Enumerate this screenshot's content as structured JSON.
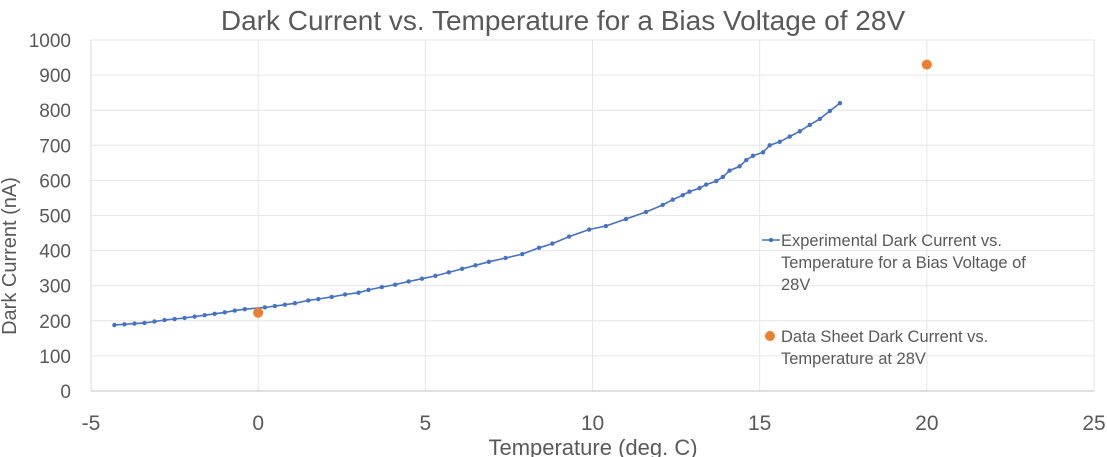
{
  "chart_data": {
    "type": "scatter",
    "title": "Dark Current vs. Temperature for a Bias Voltage of 28V",
    "xlabel": "Temperature (deg. C)",
    "ylabel": "Dark Current (nA)",
    "xlim": [
      -5,
      25
    ],
    "ylim": [
      0,
      1000
    ],
    "x_ticks": [
      "-5",
      "0",
      "5",
      "10",
      "15",
      "20",
      "25"
    ],
    "y_ticks": [
      "0",
      "100",
      "200",
      "300",
      "400",
      "500",
      "600",
      "700",
      "800",
      "900",
      "1000"
    ],
    "grid": true,
    "legend_position": "right",
    "series": [
      {
        "name": "Experimental Dark Current vs. Temperature for a Bias Voltage of 28V",
        "color": "#4472C4",
        "style": "line-with-markers",
        "points": [
          [
            -4.3,
            188
          ],
          [
            -4.0,
            190
          ],
          [
            -3.7,
            192
          ],
          [
            -3.4,
            194
          ],
          [
            -3.1,
            198
          ],
          [
            -2.8,
            202
          ],
          [
            -2.5,
            205
          ],
          [
            -2.2,
            208
          ],
          [
            -1.9,
            212
          ],
          [
            -1.6,
            216
          ],
          [
            -1.3,
            220
          ],
          [
            -1.0,
            224
          ],
          [
            -0.7,
            229
          ],
          [
            -0.4,
            233
          ],
          [
            0.2,
            238
          ],
          [
            0.5,
            242
          ],
          [
            0.8,
            246
          ],
          [
            1.1,
            250
          ],
          [
            1.5,
            258
          ],
          [
            1.8,
            262
          ],
          [
            2.2,
            268
          ],
          [
            2.6,
            275
          ],
          [
            3.0,
            280
          ],
          [
            3.3,
            288
          ],
          [
            3.7,
            296
          ],
          [
            4.1,
            303
          ],
          [
            4.5,
            312
          ],
          [
            4.9,
            320
          ],
          [
            5.3,
            328
          ],
          [
            5.7,
            338
          ],
          [
            6.1,
            348
          ],
          [
            6.5,
            358
          ],
          [
            6.9,
            368
          ],
          [
            7.4,
            379
          ],
          [
            7.9,
            390
          ],
          [
            8.4,
            408
          ],
          [
            8.8,
            420
          ],
          [
            9.3,
            440
          ],
          [
            9.9,
            460
          ],
          [
            10.4,
            470
          ],
          [
            11.0,
            490
          ],
          [
            11.6,
            510
          ],
          [
            12.1,
            530
          ],
          [
            12.4,
            545
          ],
          [
            12.7,
            558
          ],
          [
            12.9,
            568
          ],
          [
            13.2,
            578
          ],
          [
            13.4,
            588
          ],
          [
            13.7,
            598
          ],
          [
            13.9,
            610
          ],
          [
            14.1,
            628
          ],
          [
            14.4,
            640
          ],
          [
            14.6,
            658
          ],
          [
            14.8,
            670
          ],
          [
            15.1,
            680
          ],
          [
            15.3,
            700
          ],
          [
            15.6,
            710
          ],
          [
            15.9,
            725
          ],
          [
            16.2,
            740
          ],
          [
            16.5,
            758
          ],
          [
            16.8,
            775
          ],
          [
            17.1,
            798
          ],
          [
            17.4,
            820
          ]
        ]
      },
      {
        "name": "Data Sheet Dark Current vs. Temperature at 28V",
        "color": "#ED7D31",
        "style": "markers",
        "points": [
          [
            0,
            223
          ],
          [
            20,
            930
          ]
        ]
      }
    ]
  }
}
